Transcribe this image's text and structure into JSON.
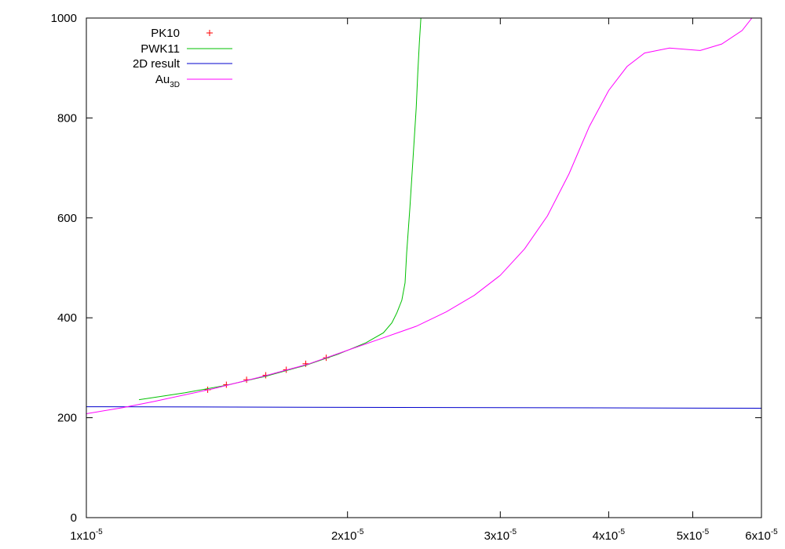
{
  "chart_data": {
    "type": "line",
    "xscale": "log",
    "xlim": [
      1e-05,
      6e-05
    ],
    "ylim": [
      0,
      1000
    ],
    "x_ticks": [
      {
        "value": 1e-05,
        "base": "1x10",
        "exp": "-5"
      },
      {
        "value": 2e-05,
        "base": "2x10",
        "exp": "-5"
      },
      {
        "value": 3e-05,
        "base": "3x10",
        "exp": "-5"
      },
      {
        "value": 4e-05,
        "base": "4x10",
        "exp": "-5"
      },
      {
        "value": 5e-05,
        "base": "5x10",
        "exp": "-5"
      },
      {
        "value": 6e-05,
        "base": "6x10",
        "exp": "-5"
      }
    ],
    "y_ticks": [
      {
        "value": 0,
        "label": "0"
      },
      {
        "value": 200,
        "label": "200"
      },
      {
        "value": 400,
        "label": "400"
      },
      {
        "value": 600,
        "label": "600"
      },
      {
        "value": 800,
        "label": "800"
      },
      {
        "value": 1000,
        "label": "1000"
      }
    ],
    "grid": false,
    "legend_position": "top-left",
    "series": [
      {
        "name": "PK10",
        "label_base": "PK10",
        "label_sub": "",
        "style": "points",
        "color": "#ff0000",
        "x": [
          1.38e-05,
          1.45e-05,
          1.53e-05,
          1.61e-05,
          1.7e-05,
          1.79e-05,
          1.89e-05
        ],
        "y": [
          256,
          266,
          276,
          285,
          296,
          308,
          320
        ]
      },
      {
        "name": "PWK11",
        "label_base": "PWK11",
        "label_sub": "",
        "style": "line",
        "color": "#00c000",
        "x": [
          1.15e-05,
          1.3e-05,
          1.45e-05,
          1.61e-05,
          1.79e-05,
          1.95e-05,
          2.1e-05,
          2.2e-05,
          2.25e-05,
          2.28e-05,
          2.31e-05,
          2.33e-05,
          2.34e-05,
          2.36e-05,
          2.38e-05,
          2.4e-05,
          2.41e-05,
          2.42e-05,
          2.43e-05
        ],
        "y": [
          236,
          250,
          265,
          283,
          305,
          327,
          350,
          370,
          390,
          410,
          435,
          470,
          530,
          620,
          720,
          820,
          890,
          950,
          1000
        ]
      },
      {
        "name": "2D result",
        "label_base": "2D result",
        "label_sub": "",
        "style": "line",
        "color": "#0000cc",
        "x": [
          1e-05,
          6e-05
        ],
        "y": [
          222,
          219
        ]
      },
      {
        "name": "Au3D",
        "label_base": "Au",
        "label_sub": "3D",
        "style": "line",
        "color": "#ff00ff",
        "x": [
          1e-05,
          1.1e-05,
          1.2e-05,
          1.4e-05,
          1.6e-05,
          1.8e-05,
          2e-05,
          2.2e-05,
          2.4e-05,
          2.6e-05,
          2.8e-05,
          3e-05,
          3.2e-05,
          3.4e-05,
          3.6e-05,
          3.8e-05,
          4e-05,
          4.2e-05,
          4.4e-05,
          4.7e-05,
          5.1e-05,
          5.4e-05,
          5.7e-05,
          5.85e-05
        ],
        "y": [
          208,
          220,
          233,
          258,
          283,
          307,
          335,
          360,
          383,
          412,
          445,
          485,
          538,
          604,
          688,
          783,
          855,
          903,
          930,
          940,
          935,
          948,
          975,
          1000
        ]
      }
    ]
  }
}
